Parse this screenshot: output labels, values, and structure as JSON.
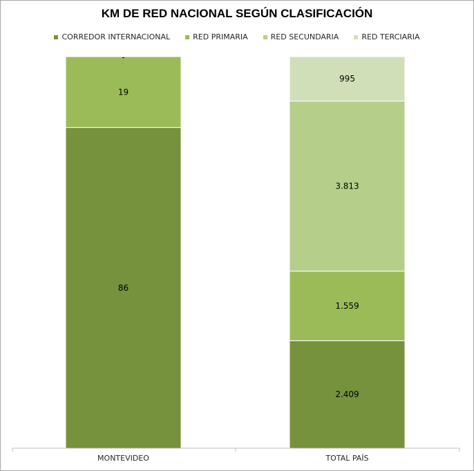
{
  "chart_data": {
    "type": "stacked-bar-100",
    "title": "KM DE RED NACIONAL SEGÚN CLASIFICACIÓN",
    "categories": [
      "MONTEVIDEO",
      "TOTAL PAÍS"
    ],
    "series": [
      {
        "name": "CORREDOR INTERNACIONAL",
        "color": "#76923c",
        "values": [
          86,
          2409
        ],
        "labels": [
          "86",
          "2.409"
        ]
      },
      {
        "name": "RED PRIMARIA",
        "color": "#9bbb59",
        "values": [
          19,
          1559
        ],
        "labels": [
          "19",
          "1.559"
        ]
      },
      {
        "name": "RED SECUNDARIA",
        "color": "#b5cf8a",
        "values": [
          0,
          3813
        ],
        "labels": [
          "-",
          "3.813"
        ]
      },
      {
        "name": "RED TERCIARIA",
        "color": "#d1dfb8",
        "values": [
          0,
          995
        ],
        "labels": [
          "",
          "995"
        ]
      }
    ],
    "ylim": [
      0,
      100
    ],
    "legend": "top",
    "grid": false
  }
}
